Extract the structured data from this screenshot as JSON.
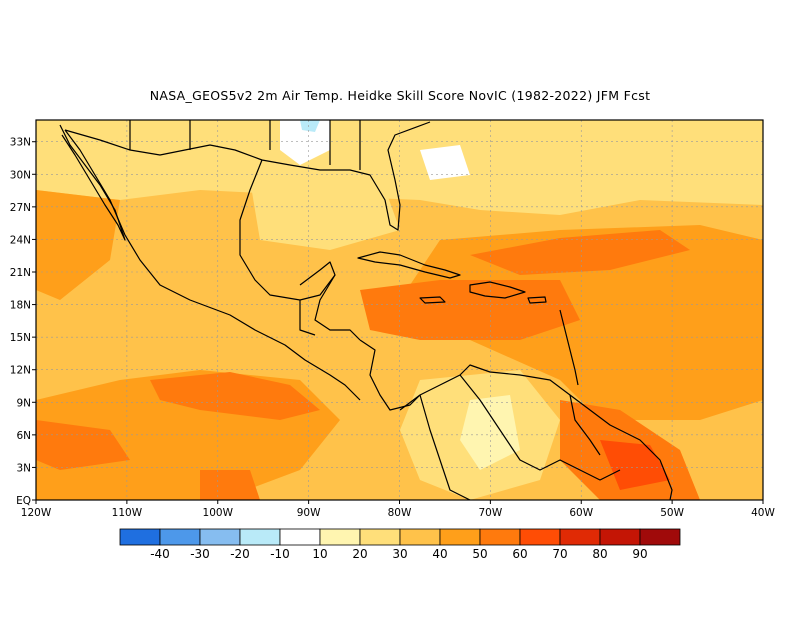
{
  "title": "NASA_GEOS5v2  2m Air Temp. Heidke Skill Score NovIC (1982-2022) JFM Fcst",
  "map": {
    "lon_range": [
      -120,
      -40
    ],
    "lat_range": [
      0,
      35
    ],
    "lat_ticks": [
      "33N",
      "30N",
      "27N",
      "24N",
      "21N",
      "18N",
      "15N",
      "12N",
      "9N",
      "6N",
      "3N",
      "EQ"
    ],
    "lat_values": [
      33,
      30,
      27,
      24,
      21,
      18,
      15,
      12,
      9,
      6,
      3,
      0
    ],
    "lon_ticks": [
      "120W",
      "110W",
      "100W",
      "90W",
      "80W",
      "70W",
      "60W",
      "50W",
      "40W"
    ],
    "lon_values": [
      -120,
      -110,
      -100,
      -90,
      -80,
      -70,
      -60,
      -50,
      -40
    ],
    "grid": true
  },
  "colorbar": {
    "colors": [
      "#1f6fe0",
      "#4d98ea",
      "#86bdf0",
      "#b9eaf8",
      "#ffffff",
      "#fff5b0",
      "#ffdf7a",
      "#ffc24a",
      "#ff9f1a",
      "#ff7a0d",
      "#ff4d05",
      "#e02a05",
      "#c41505",
      "#a00a0a"
    ],
    "labels": [
      "-40",
      "-30",
      "-20",
      "-10",
      "10",
      "20",
      "30",
      "40",
      "50",
      "60",
      "70",
      "80",
      "90"
    ]
  }
}
